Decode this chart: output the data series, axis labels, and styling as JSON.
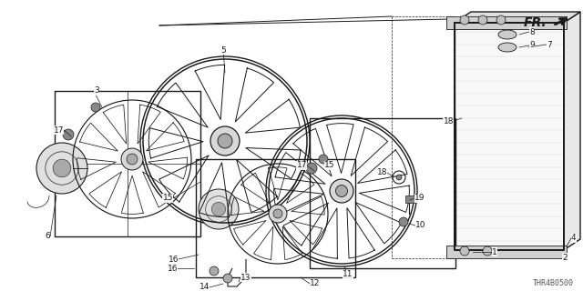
{
  "bg_color": "#ffffff",
  "line_color": "#1a1a1a",
  "diagram_code": "THR4B0500",
  "fr_label": "FR.",
  "label_fontsize": 6.5,
  "diagram_fontsize": 6.0,
  "fig_w": 6.4,
  "fig_h": 3.2,
  "dpi": 100
}
